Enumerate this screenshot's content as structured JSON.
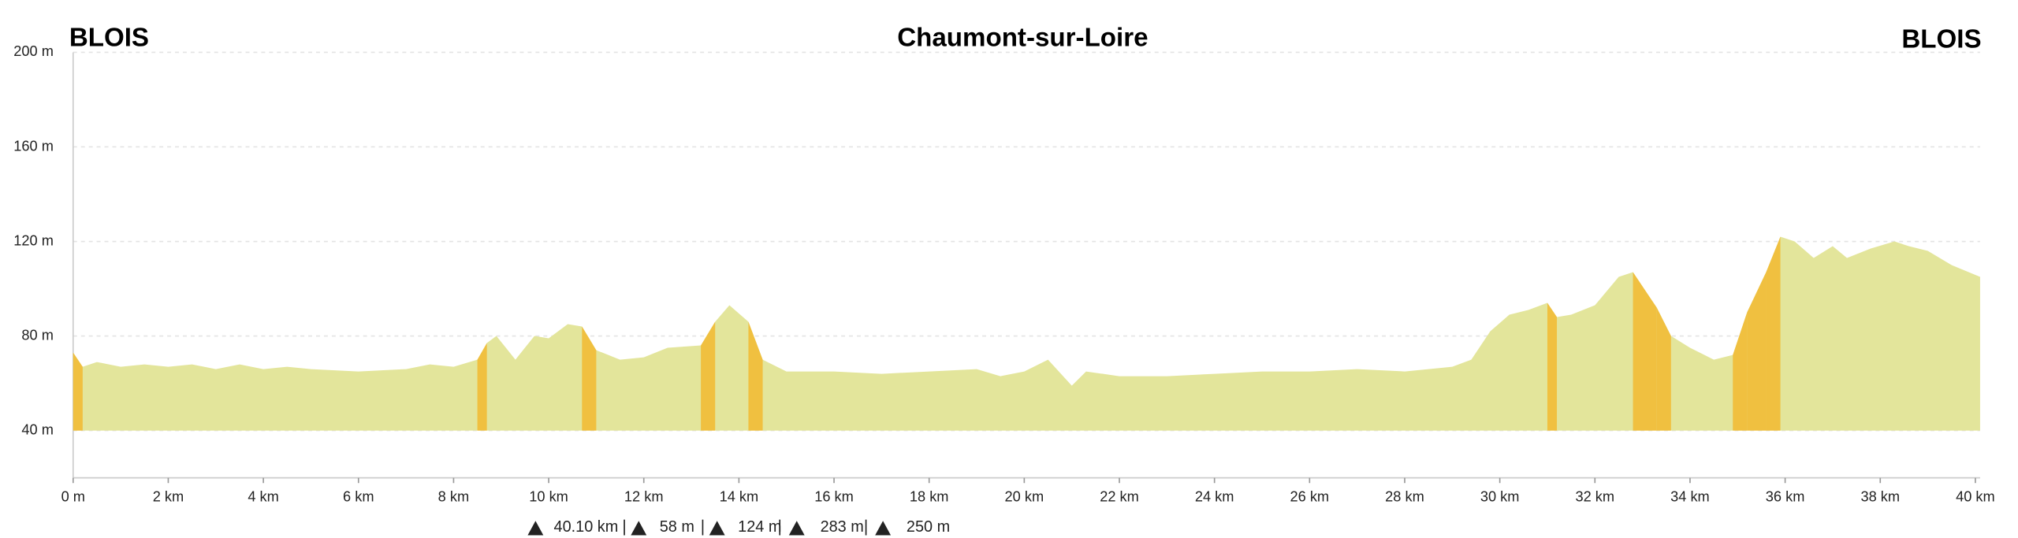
{
  "chart_data": {
    "type": "area",
    "title": "Chaumont-sur-Loire",
    "start_label": "BLOIS",
    "end_label": "BLOIS",
    "color": "#e3e59b",
    "grid": true,
    "xlim": [
      0,
      40.1
    ],
    "ylim": [
      20,
      200
    ],
    "xticks": [
      {
        "value": 0,
        "label": "0 m"
      },
      {
        "value": 2,
        "label": "2 km"
      },
      {
        "value": 4,
        "label": "4 km"
      },
      {
        "value": 6,
        "label": "6 km"
      },
      {
        "value": 8,
        "label": "8 km"
      },
      {
        "value": 10,
        "label": "10 km"
      },
      {
        "value": 12,
        "label": "12 km"
      },
      {
        "value": 14,
        "label": "14 km"
      },
      {
        "value": 16,
        "label": "16 km"
      },
      {
        "value": 18,
        "label": "18 km"
      },
      {
        "value": 20,
        "label": "20 km"
      },
      {
        "value": 22,
        "label": "22 km"
      },
      {
        "value": 24,
        "label": "24 km"
      },
      {
        "value": 26,
        "label": "26 km"
      },
      {
        "value": 28,
        "label": "28 km"
      },
      {
        "value": 30,
        "label": "30 km"
      },
      {
        "value": 32,
        "label": "32 km"
      },
      {
        "value": 34,
        "label": "34 km"
      },
      {
        "value": 36,
        "label": "36 km"
      },
      {
        "value": 38,
        "label": "38 km"
      },
      {
        "value": 40,
        "label": "40 km"
      }
    ],
    "yticks": [
      {
        "value": 40,
        "label": "40 m"
      },
      {
        "value": 80,
        "label": "80 m"
      },
      {
        "value": 120,
        "label": "120 m"
      },
      {
        "value": 160,
        "label": "160 m"
      },
      {
        "value": 200,
        "label": "200 m"
      }
    ],
    "x": [
      0,
      0.2,
      0.5,
      1,
      1.5,
      2,
      2.5,
      3,
      3.5,
      4,
      4.5,
      5,
      6,
      7,
      7.5,
      8,
      8.5,
      8.7,
      8.9,
      9.1,
      9.3,
      9.5,
      9.7,
      10,
      10.4,
      10.7,
      11,
      11.5,
      12,
      12.5,
      13.2,
      13.5,
      13.8,
      14.2,
      14.5,
      15,
      16,
      17,
      18,
      19,
      19.5,
      20,
      20.5,
      21,
      21.3,
      22,
      23,
      24,
      25,
      26,
      27,
      28,
      29,
      29.4,
      29.8,
      30.2,
      30.6,
      31,
      31.2,
      31.5,
      32,
      32.5,
      32.8,
      33.3,
      33.6,
      34,
      34.5,
      34.9,
      35.2,
      35.6,
      35.9,
      36.2,
      36.6,
      37,
      37.3,
      37.8,
      38.3,
      38.6,
      39,
      39.5,
      40.1
    ],
    "values": [
      73,
      67,
      69,
      67,
      68,
      67,
      68,
      66,
      68,
      66,
      67,
      66,
      65,
      66,
      68,
      67,
      70,
      77,
      80,
      75,
      70,
      75,
      80,
      79,
      85,
      84,
      74,
      70,
      71,
      75,
      76,
      86,
      93,
      86,
      70,
      65,
      65,
      64,
      65,
      66,
      63,
      65,
      70,
      59,
      65,
      63,
      63,
      64,
      65,
      65,
      66,
      65,
      67,
      70,
      82,
      89,
      91,
      94,
      88,
      89,
      93,
      105,
      107,
      92,
      80,
      75,
      70,
      72,
      90,
      107,
      122,
      120,
      113,
      118,
      113,
      117,
      120,
      118,
      116,
      110,
      105
    ],
    "stats": [
      "40.10 km",
      "58 m",
      "124 m",
      "283 m",
      "250 m"
    ]
  }
}
